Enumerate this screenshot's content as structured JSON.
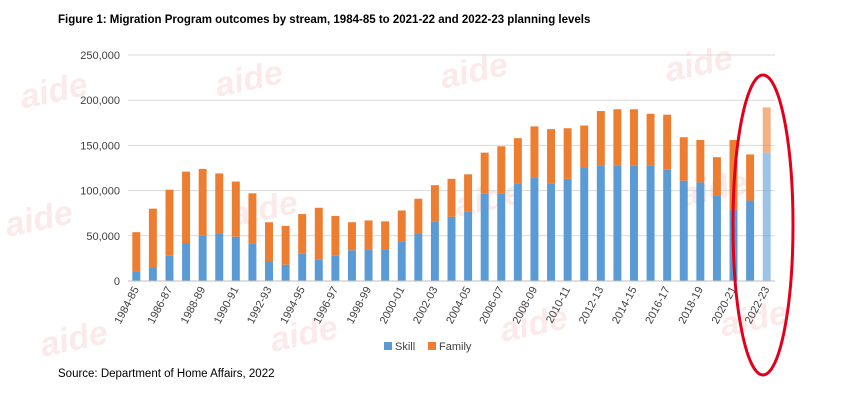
{
  "title": "Figure 1: Migration Program outcomes by stream, 1984-85 to 2021-22 and 2022-23 planning levels",
  "source": "Source: Department of Home Affairs, 2022",
  "watermark": "aide",
  "colors": {
    "skill": "#5B9BD5",
    "family": "#ED7D31",
    "highlight": "#E3001B",
    "grid": "#D9D9D9",
    "axis": "#595959"
  },
  "chart_data": {
    "type": "bar",
    "stacked": true,
    "ylim": [
      0,
      250000
    ],
    "yticks": [
      0,
      50000,
      100000,
      150000,
      200000,
      250000
    ],
    "ytick_labels": [
      "0",
      "50,000",
      "100,000",
      "150,000",
      "200,000",
      "250,000"
    ],
    "legend_position": "bottom",
    "grid": true,
    "categories": [
      "1984-85",
      "1985-86",
      "1986-87",
      "1987-88",
      "1988-89",
      "1989-90",
      "1990-91",
      "1991-92",
      "1992-93",
      "1993-94",
      "1994-95",
      "1995-96",
      "1996-97",
      "1997-98",
      "1998-99",
      "1999-00",
      "2000-01",
      "2001-02",
      "2002-03",
      "2003-04",
      "2004-05",
      "2005-06",
      "2006-07",
      "2007-08",
      "2008-09",
      "2009-10",
      "2010-11",
      "2011-12",
      "2012-13",
      "2013-14",
      "2014-15",
      "2015-16",
      "2016-17",
      "2017-18",
      "2018-19",
      "2019-20",
      "2020-21",
      "2021-22",
      "2022-23"
    ],
    "shown_tick_labels": [
      "1984-85",
      "1986-87",
      "1988-89",
      "1990-91",
      "1992-93",
      "1994-95",
      "1996-97",
      "1998-99",
      "2000-01",
      "2002-03",
      "2004-05",
      "2006-07",
      "2008-09",
      "2010-11",
      "2012-13",
      "2014-15",
      "2016-17",
      "2018-19",
      "2020-21",
      "2022-23"
    ],
    "series": [
      {
        "name": "Skill",
        "values": [
          10000,
          15000,
          28000,
          42000,
          50000,
          52000,
          49000,
          41000,
          21000,
          18000,
          30000,
          24000,
          28000,
          34000,
          35000,
          35000,
          44000,
          53000,
          66000,
          71000,
          77000,
          97000,
          97000,
          108000,
          114000,
          108000,
          113000,
          125000,
          128000,
          128000,
          128000,
          128000,
          123000,
          111000,
          109000,
          95000,
          79000,
          89000,
          142000
        ]
      },
      {
        "name": "Family",
        "values": [
          44000,
          65000,
          73000,
          79000,
          74000,
          67000,
          61000,
          56000,
          44000,
          43000,
          44000,
          57000,
          44000,
          31000,
          32000,
          31000,
          34000,
          38000,
          40000,
          42000,
          41000,
          45000,
          52000,
          50000,
          57000,
          60000,
          56000,
          47000,
          60000,
          62000,
          62000,
          57000,
          61000,
          48000,
          47000,
          42000,
          77000,
          51000,
          50000
        ]
      }
    ]
  }
}
